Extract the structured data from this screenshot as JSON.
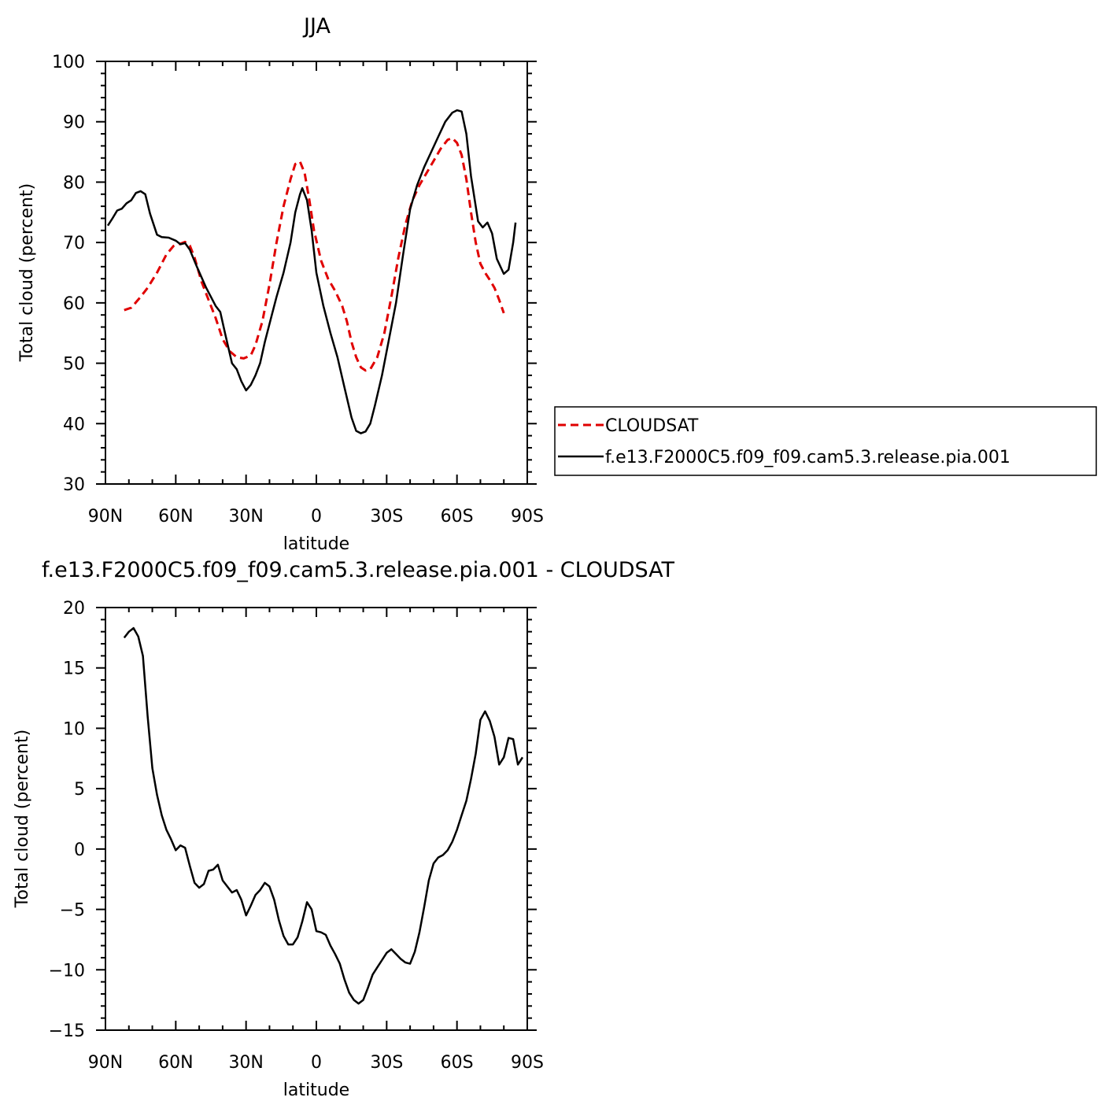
{
  "chart_data": [
    {
      "type": "line",
      "title": "JJA",
      "xlabel": "latitude",
      "ylabel": "Total cloud (percent)",
      "xlim": [
        90,
        -90
      ],
      "ylim": [
        30,
        100
      ],
      "xticks": [
        90,
        60,
        30,
        0,
        -30,
        -60,
        -90
      ],
      "xtick_labels": [
        "90N",
        "60N",
        "30N",
        "0",
        "30S",
        "60S",
        "90S"
      ],
      "yticks": [
        30,
        40,
        50,
        60,
        70,
        80,
        90,
        100
      ],
      "ytick_labels": [
        "30",
        "40",
        "50",
        "60",
        "70",
        "80",
        "90",
        "100"
      ],
      "legend_position": "right",
      "series": [
        {
          "name": "CLOUDSAT",
          "color": "#e00000",
          "dash": "dashed",
          "points": [
            [
              82,
              58.8
            ],
            [
              79,
              59.2
            ],
            [
              75,
              61
            ],
            [
              72,
              62.5
            ],
            [
              68,
              65
            ],
            [
              64,
              68
            ],
            [
              61,
              69.4
            ],
            [
              58,
              69.8
            ],
            [
              56,
              70.1
            ],
            [
              54,
              69.5
            ],
            [
              52,
              67.5
            ],
            [
              49,
              63.5
            ],
            [
              46,
              60.5
            ],
            [
              43,
              57.5
            ],
            [
              40,
              54
            ],
            [
              37,
              52
            ],
            [
              34,
              51
            ],
            [
              31,
              50.8
            ],
            [
              28,
              51.3
            ],
            [
              26,
              53
            ],
            [
              23,
              57
            ],
            [
              20,
              63
            ],
            [
              17,
              70
            ],
            [
              14,
              76
            ],
            [
              11,
              80.5
            ],
            [
              9,
              83
            ],
            [
              7,
              83.4
            ],
            [
              5,
              81.5
            ],
            [
              3,
              77
            ],
            [
              1,
              72
            ],
            [
              -2,
              67
            ],
            [
              -5,
              64
            ],
            [
              -8,
              62
            ],
            [
              -11,
              59.5
            ],
            [
              -13,
              57
            ],
            [
              -15,
              53.5
            ],
            [
              -17,
              51
            ],
            [
              -19,
              49.3
            ],
            [
              -21,
              48.8
            ],
            [
              -23,
              49
            ],
            [
              -26,
              51
            ],
            [
              -29,
              55
            ],
            [
              -32,
              61
            ],
            [
              -35,
              67.5
            ],
            [
              -38,
              73
            ],
            [
              -41,
              77
            ],
            [
              -44,
              79.5
            ],
            [
              -47,
              81.5
            ],
            [
              -50,
              83.5
            ],
            [
              -53,
              85.5
            ],
            [
              -56,
              87
            ],
            [
              -58,
              87.3
            ],
            [
              -60,
              86.5
            ],
            [
              -62,
              84.5
            ],
            [
              -64,
              80.5
            ],
            [
              -66,
              75
            ],
            [
              -68,
              70
            ],
            [
              -70,
              66.5
            ],
            [
              -72,
              65
            ],
            [
              -74,
              63.8
            ],
            [
              -76,
              62.5
            ],
            [
              -78,
              60.5
            ],
            [
              -80,
              58.3
            ]
          ]
        },
        {
          "name": "f.e13.F2000C5.f09_f09.cam5.3.release.pia.001",
          "color": "#000000",
          "dash": "solid",
          "points": [
            [
              89,
              72.8
            ],
            [
              87,
              74
            ],
            [
              85,
              75.3
            ],
            [
              83,
              75.6
            ],
            [
              81,
              76.5
            ],
            [
              79,
              77
            ],
            [
              77,
              78.2
            ],
            [
              75,
              78.5
            ],
            [
              73,
              78
            ],
            [
              71,
              74.8
            ],
            [
              68,
              71.3
            ],
            [
              66,
              70.9
            ],
            [
              63,
              70.8
            ],
            [
              60,
              70.3
            ],
            [
              58,
              69.7
            ],
            [
              56,
              69.9
            ],
            [
              54,
              68.8
            ],
            [
              51,
              66
            ],
            [
              47,
              62.5
            ],
            [
              43,
              59.5
            ],
            [
              41,
              58.5
            ],
            [
              39,
              55
            ],
            [
              36,
              50
            ],
            [
              34,
              49
            ],
            [
              32,
              47
            ],
            [
              30,
              45.5
            ],
            [
              28,
              46.4
            ],
            [
              26,
              48
            ],
            [
              24,
              50
            ],
            [
              22,
              53.5
            ],
            [
              19,
              58
            ],
            [
              17,
              61
            ],
            [
              14,
              65
            ],
            [
              11,
              70
            ],
            [
              9,
              75
            ],
            [
              7,
              78
            ],
            [
              6,
              79
            ],
            [
              4,
              77
            ],
            [
              2,
              72
            ],
            [
              0,
              65
            ],
            [
              -3,
              59.5
            ],
            [
              -6,
              55
            ],
            [
              -9,
              51
            ],
            [
              -12,
              46
            ],
            [
              -15,
              41
            ],
            [
              -17,
              38.8
            ],
            [
              -19,
              38.4
            ],
            [
              -21,
              38.7
            ],
            [
              -23,
              40
            ],
            [
              -25,
              43
            ],
            [
              -28,
              48
            ],
            [
              -31,
              54
            ],
            [
              -34,
              60
            ],
            [
              -37,
              68
            ],
            [
              -40,
              75.5
            ],
            [
              -43,
              79.5
            ],
            [
              -46,
              82.5
            ],
            [
              -49,
              85
            ],
            [
              -52,
              87.5
            ],
            [
              -55,
              90
            ],
            [
              -58,
              91.5
            ],
            [
              -60,
              91.9
            ],
            [
              -62,
              91.7
            ],
            [
              -64,
              88
            ],
            [
              -66,
              81
            ],
            [
              -69,
              73.5
            ],
            [
              -71,
              72.5
            ],
            [
              -73,
              73.3
            ],
            [
              -75,
              71.5
            ],
            [
              -77,
              67.3
            ],
            [
              -80,
              64.8
            ],
            [
              -82,
              65.5
            ],
            [
              -84,
              70
            ],
            [
              -85,
              73.3
            ]
          ]
        }
      ]
    },
    {
      "type": "line",
      "title": "f.e13.F2000C5.f09_f09.cam5.3.release.pia.001  -  CLOUDSAT",
      "xlabel": "latitude",
      "ylabel": "Total cloud (percent)",
      "xlim": [
        90,
        -90
      ],
      "ylim": [
        -15,
        20
      ],
      "xticks": [
        90,
        60,
        30,
        0,
        -30,
        -60,
        -90
      ],
      "xtick_labels": [
        "90N",
        "60N",
        "30N",
        "0",
        "30S",
        "60S",
        "90S"
      ],
      "yticks": [
        -15,
        -10,
        -5,
        0,
        5,
        10,
        15,
        20
      ],
      "ytick_labels": [
        "−15",
        "−10",
        "−5",
        "0",
        "5",
        "10",
        "15",
        "20"
      ],
      "series": [
        {
          "color": "#000000",
          "dash": "solid",
          "points": [
            [
              82,
              17.5
            ],
            [
              80,
              18
            ],
            [
              78,
              18.3
            ],
            [
              76,
              17.6
            ],
            [
              74,
              16
            ],
            [
              72,
              11
            ],
            [
              70,
              6.7
            ],
            [
              68,
              4.5
            ],
            [
              66,
              2.8
            ],
            [
              64,
              1.6
            ],
            [
              62,
              0.8
            ],
            [
              60,
              -0.1
            ],
            [
              58,
              0.3
            ],
            [
              56,
              0.1
            ],
            [
              54,
              -1.4
            ],
            [
              52,
              -2.8
            ],
            [
              50,
              -3.2
            ],
            [
              48,
              -2.9
            ],
            [
              46,
              -1.8
            ],
            [
              44,
              -1.7
            ],
            [
              42,
              -1.3
            ],
            [
              40,
              -2.6
            ],
            [
              38,
              -3.1
            ],
            [
              36,
              -3.6
            ],
            [
              34,
              -3.4
            ],
            [
              32,
              -4.2
            ],
            [
              30,
              -5.5
            ],
            [
              28,
              -4.7
            ],
            [
              26,
              -3.8
            ],
            [
              24,
              -3.4
            ],
            [
              22,
              -2.8
            ],
            [
              20,
              -3.1
            ],
            [
              18,
              -4.2
            ],
            [
              16,
              -5.9
            ],
            [
              14,
              -7.2
            ],
            [
              12,
              -7.9
            ],
            [
              10,
              -7.9
            ],
            [
              8,
              -7.3
            ],
            [
              6,
              -6
            ],
            [
              4,
              -4.4
            ],
            [
              2,
              -5
            ],
            [
              0,
              -6.8
            ],
            [
              -2,
              -6.9
            ],
            [
              -4,
              -7.1
            ],
            [
              -6,
              -8
            ],
            [
              -8,
              -8.7
            ],
            [
              -10,
              -9.5
            ],
            [
              -12,
              -10.8
            ],
            [
              -14,
              -11.9
            ],
            [
              -16,
              -12.5
            ],
            [
              -18,
              -12.8
            ],
            [
              -20,
              -12.5
            ],
            [
              -22,
              -11.5
            ],
            [
              -24,
              -10.4
            ],
            [
              -26,
              -9.8
            ],
            [
              -28,
              -9.2
            ],
            [
              -30,
              -8.6
            ],
            [
              -32,
              -8.3
            ],
            [
              -34,
              -8.7
            ],
            [
              -36,
              -9.1
            ],
            [
              -38,
              -9.4
            ],
            [
              -40,
              -9.5
            ],
            [
              -42,
              -8.5
            ],
            [
              -44,
              -6.9
            ],
            [
              -46,
              -4.8
            ],
            [
              -48,
              -2.6
            ],
            [
              -50,
              -1.2
            ],
            [
              -52,
              -0.7
            ],
            [
              -54,
              -0.5
            ],
            [
              -56,
              -0.1
            ],
            [
              -58,
              0.6
            ],
            [
              -60,
              1.6
            ],
            [
              -62,
              2.8
            ],
            [
              -64,
              4
            ],
            [
              -66,
              5.8
            ],
            [
              -68,
              7.9
            ],
            [
              -70,
              10.7
            ],
            [
              -72,
              11.4
            ],
            [
              -74,
              10.6
            ],
            [
              -76,
              9.3
            ],
            [
              -78,
              7
            ],
            [
              -80,
              7.6
            ],
            [
              -82,
              9.2
            ],
            [
              -84,
              9.1
            ],
            [
              -86,
              7
            ],
            [
              -88,
              7.6
            ]
          ]
        }
      ]
    }
  ]
}
